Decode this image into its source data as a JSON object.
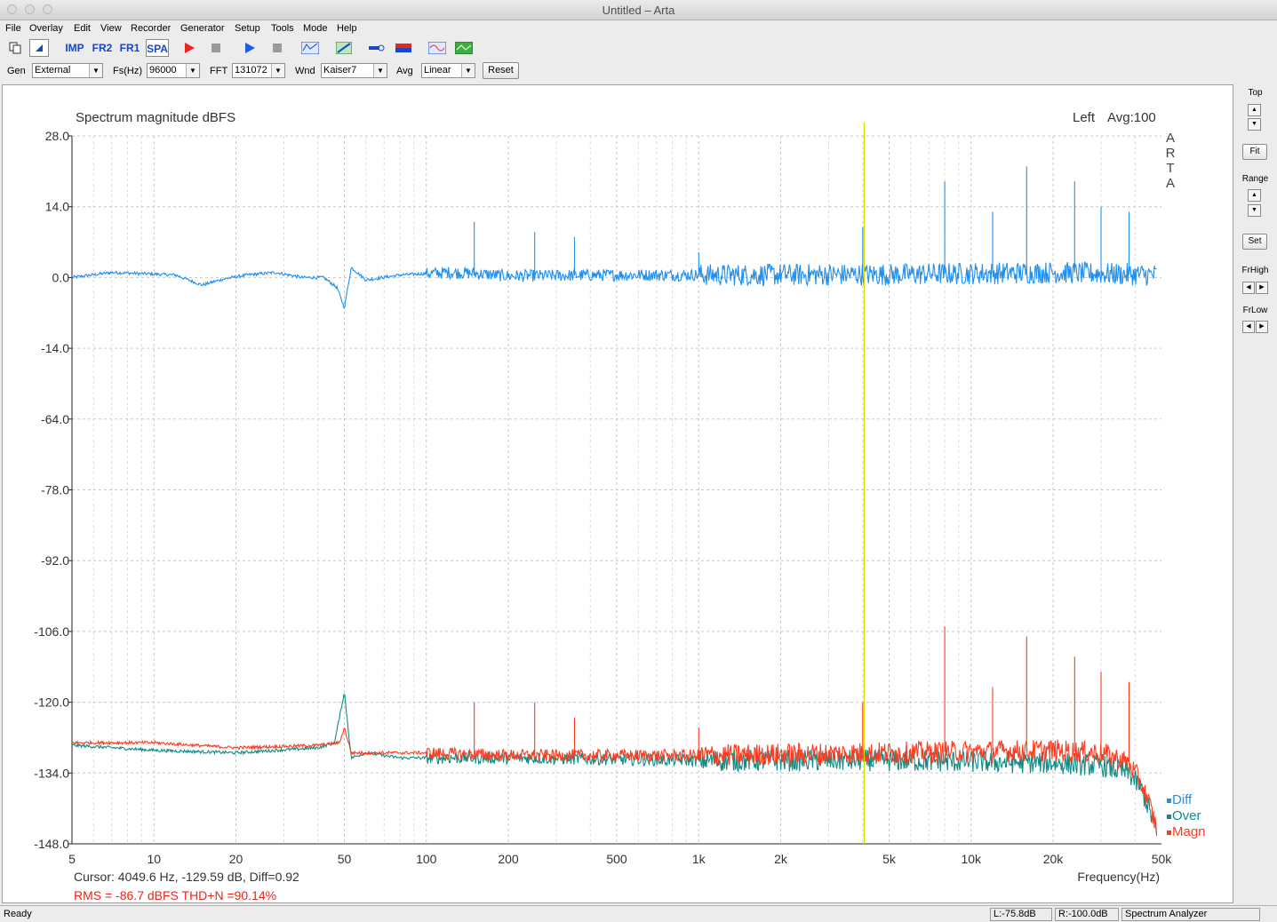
{
  "window": {
    "title": "Untitled – Arta"
  },
  "menu": [
    "File",
    "Overlay",
    "Edit",
    "View",
    "Recorder",
    "Generator",
    "Setup",
    "Tools",
    "Mode",
    "Help"
  ],
  "toolbar": {
    "buttons": [
      {
        "icon": "copy-icon"
      },
      {
        "icon": "cursor-icon",
        "pressed": true
      },
      {
        "label": "IMP"
      },
      {
        "label": "FR2"
      },
      {
        "label": "FR1"
      },
      {
        "label": "SPA",
        "pressed": true
      },
      {
        "icon": "play-red-icon"
      },
      {
        "icon": "stop-icon"
      },
      {
        "icon": "play-blue-icon"
      },
      {
        "icon": "stop-icon"
      },
      {
        "icon": "abc-icon"
      },
      {
        "icon": "measure-icon"
      },
      {
        "icon": "probe-icon"
      },
      {
        "icon": "bar-icon"
      },
      {
        "icon": "waveform-icon"
      },
      {
        "icon": "scope-icon"
      }
    ]
  },
  "options": {
    "gen_label": "Gen",
    "gen_value": "External",
    "fs_label": "Fs(Hz)",
    "fs_value": "96000",
    "fft_label": "FFT",
    "fft_value": "131072",
    "wnd_label": "Wnd",
    "wnd_value": "Kaiser7",
    "avg_label": "Avg",
    "avg_value": "Linear",
    "reset_label": "Reset"
  },
  "side_panel": {
    "top_label": "Top",
    "fit_label": "Fit",
    "range_label": "Range",
    "set_label": "Set",
    "frhigh_label": "FrHigh",
    "frlow_label": "FrLow"
  },
  "chart_data": {
    "type": "line",
    "title": "Spectrum magnitude dBFS",
    "channel": "Left",
    "avg_text": "Avg:100",
    "watermark": [
      "A",
      "R",
      "T",
      "A"
    ],
    "xlabel": "Frequency(Hz)",
    "x_scale": "log",
    "xlim": [
      5,
      50000
    ],
    "x_ticks": [
      {
        "v": 5,
        "l": "5"
      },
      {
        "v": 10,
        "l": "10"
      },
      {
        "v": 20,
        "l": "20"
      },
      {
        "v": 50,
        "l": "50"
      },
      {
        "v": 100,
        "l": "100"
      },
      {
        "v": 200,
        "l": "200"
      },
      {
        "v": 500,
        "l": "500"
      },
      {
        "v": 1000,
        "l": "1k"
      },
      {
        "v": 2000,
        "l": "2k"
      },
      {
        "v": 5000,
        "l": "5k"
      },
      {
        "v": 10000,
        "l": "10k"
      },
      {
        "v": 20000,
        "l": "20k"
      },
      {
        "v": 50000,
        "l": "50k"
      }
    ],
    "y_ticks": [
      "28.0",
      "14.0",
      "0.0",
      "-14.0",
      "-64.0",
      "-78.0",
      "-92.0",
      "-106.0",
      "-120.0",
      "-134.0",
      "-148.0"
    ],
    "top_section_db": [
      28,
      14,
      0,
      -14
    ],
    "bottom_section_db": [
      -64,
      -78,
      -92,
      -106,
      -120,
      -134,
      -148
    ],
    "cursor_hz": 4049.6,
    "series": [
      {
        "name": "Diff",
        "color": "#1f8ff0",
        "section": "top",
        "points": [
          [
            5,
            0
          ],
          [
            7,
            1
          ],
          [
            12,
            0.5
          ],
          [
            15,
            -1.5
          ],
          [
            18,
            -0.3
          ],
          [
            22,
            0.5
          ],
          [
            28,
            1
          ],
          [
            35,
            0
          ],
          [
            42,
            0
          ],
          [
            47,
            -2
          ],
          [
            50,
            -6
          ],
          [
            53,
            2
          ],
          [
            60,
            -0.5
          ],
          [
            80,
            0.5
          ],
          [
            120,
            1
          ],
          [
            150,
            0.8
          ],
          [
            200,
            0.3
          ],
          [
            500,
            0.5
          ],
          [
            1000,
            0.5
          ],
          [
            5000,
            0.6
          ],
          [
            20000,
            1
          ],
          [
            48000,
            0.5
          ]
        ],
        "peaks": [
          [
            150,
            11
          ],
          [
            250,
            9
          ],
          [
            350,
            8
          ],
          [
            1000,
            5
          ],
          [
            4000,
            10
          ],
          [
            8000,
            19
          ],
          [
            12000,
            13
          ],
          [
            16000,
            22
          ],
          [
            24000,
            19
          ],
          [
            30000,
            14
          ],
          [
            38000,
            13
          ]
        ]
      },
      {
        "name": "Over",
        "color": "#0f8c86",
        "section": "bottom",
        "points": [
          [
            5,
            -128.5
          ],
          [
            10,
            -129.5
          ],
          [
            20,
            -130
          ],
          [
            40,
            -129
          ],
          [
            46,
            -128
          ],
          [
            50,
            -118
          ],
          [
            53,
            -131
          ],
          [
            60,
            -130
          ],
          [
            80,
            -131
          ],
          [
            100,
            -131
          ],
          [
            200,
            -131
          ],
          [
            500,
            -131.3
          ],
          [
            1000,
            -131.5
          ],
          [
            5000,
            -131.5
          ],
          [
            20000,
            -132
          ],
          [
            30000,
            -132.5
          ],
          [
            38000,
            -134
          ],
          [
            42000,
            -137
          ],
          [
            45000,
            -141
          ],
          [
            48000,
            -146
          ]
        ]
      },
      {
        "name": "Magn",
        "color": "#ff3b1f",
        "section": "bottom",
        "points": [
          [
            5,
            -128
          ],
          [
            10,
            -128
          ],
          [
            20,
            -129
          ],
          [
            40,
            -128.5
          ],
          [
            48,
            -128
          ],
          [
            50,
            -125
          ],
          [
            53,
            -130
          ],
          [
            60,
            -130
          ],
          [
            100,
            -130
          ],
          [
            200,
            -130.5
          ],
          [
            500,
            -130.5
          ],
          [
            1000,
            -130.5
          ],
          [
            5000,
            -130
          ],
          [
            20000,
            -129.5
          ],
          [
            30000,
            -130
          ],
          [
            38000,
            -132
          ],
          [
            42000,
            -136
          ],
          [
            45000,
            -140
          ],
          [
            48000,
            -145
          ]
        ],
        "peaks": [
          [
            150,
            -120
          ],
          [
            250,
            -120
          ],
          [
            350,
            -123
          ],
          [
            1000,
            -125
          ],
          [
            4000,
            -120
          ],
          [
            8000,
            -105
          ],
          [
            12000,
            -117
          ],
          [
            16000,
            -107
          ],
          [
            24000,
            -111
          ],
          [
            30000,
            -114
          ],
          [
            38000,
            -116
          ]
        ]
      }
    ],
    "legend": [
      {
        "name": "Diff",
        "color": "#1f8ff0"
      },
      {
        "name": "Over",
        "color": "#0f8c86"
      },
      {
        "name": "Magn",
        "color": "#ff3b1f"
      }
    ],
    "cursor_text": "Cursor:  4049.6 Hz, -129.59 dB,  Diff=0.92",
    "rms_text": "RMS =  -86.7 dBFS   THD+N =90.14%"
  },
  "status": {
    "ready": "Ready",
    "left_level": "L:-75.8dB",
    "right_level": "R:-100.0dB",
    "mode": "Spectrum Analyzer"
  }
}
